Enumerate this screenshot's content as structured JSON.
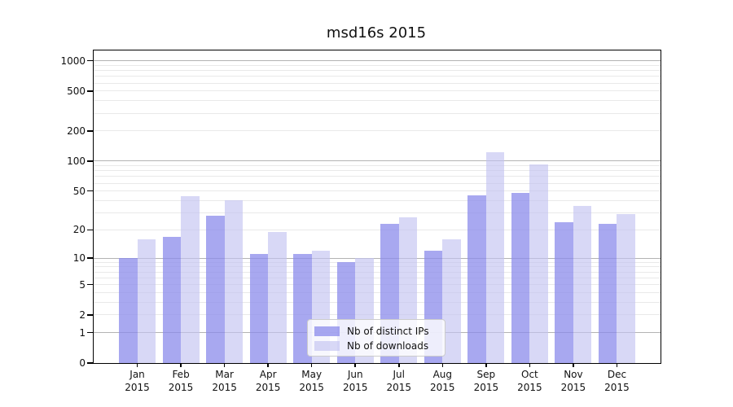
{
  "title": "msd16s 2015",
  "chart_data": {
    "type": "bar",
    "title": "msd16s 2015",
    "x_months": [
      "Jan",
      "Feb",
      "Mar",
      "Apr",
      "May",
      "Jun",
      "Jul",
      "Aug",
      "Sep",
      "Oct",
      "Nov",
      "Dec"
    ],
    "x_year": "2015",
    "series": [
      {
        "name": "Nb of distinct IPs",
        "values": [
          10,
          17,
          28,
          11,
          11,
          9,
          23,
          12,
          45,
          48,
          24,
          23
        ],
        "fill": "rgba(139,139,235,0.75)"
      },
      {
        "name": "Nb of downloads",
        "values": [
          16,
          44,
          40,
          19,
          12,
          10,
          27,
          16,
          124,
          93,
          35,
          29
        ],
        "fill": "rgba(195,195,241,0.65)"
      }
    ],
    "y_scale": "log1p",
    "y_ticks": [
      0,
      1,
      2,
      5,
      10,
      20,
      50,
      100,
      200,
      500,
      1000
    ],
    "ylim": [
      0,
      1267
    ],
    "grid": "both",
    "legend_position": "lower center"
  },
  "colors": {
    "grid_major": "#b3b3b3",
    "grid_minor": "#e9e9e9",
    "frame": "#000000",
    "text": "#111111",
    "legend_border": "#cccccc",
    "legend_bg": "rgba(255,255,255,0.8)"
  }
}
